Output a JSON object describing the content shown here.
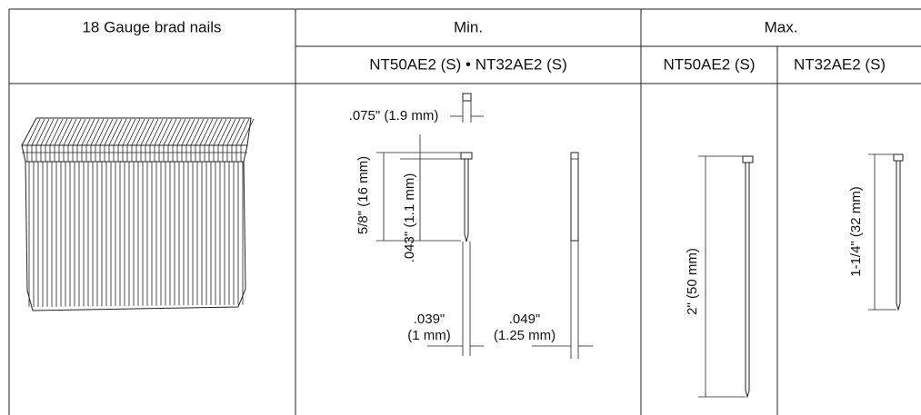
{
  "table": {
    "header": [
      "18 Gauge brad nails",
      "Min.",
      "Max."
    ],
    "subheader": [
      "NT50AE2 (S) • NT32AE2 (S)",
      "NT50AE2 (S)",
      "NT32AE2 (S)"
    ]
  },
  "dimensions": {
    "head_width": ".075\" (1.9 mm)",
    "min_length": "5/8\" (16 mm)",
    "head_thickness": ".043\" (1.1 mm)",
    "width_1": [
      ".039\"",
      "(1 mm)"
    ],
    "width_2": [
      ".049\"",
      "(1.25 mm)"
    ],
    "max_length_1": "2\" (50 mm)",
    "max_length_2": "1-1/4\" (32 mm)"
  }
}
